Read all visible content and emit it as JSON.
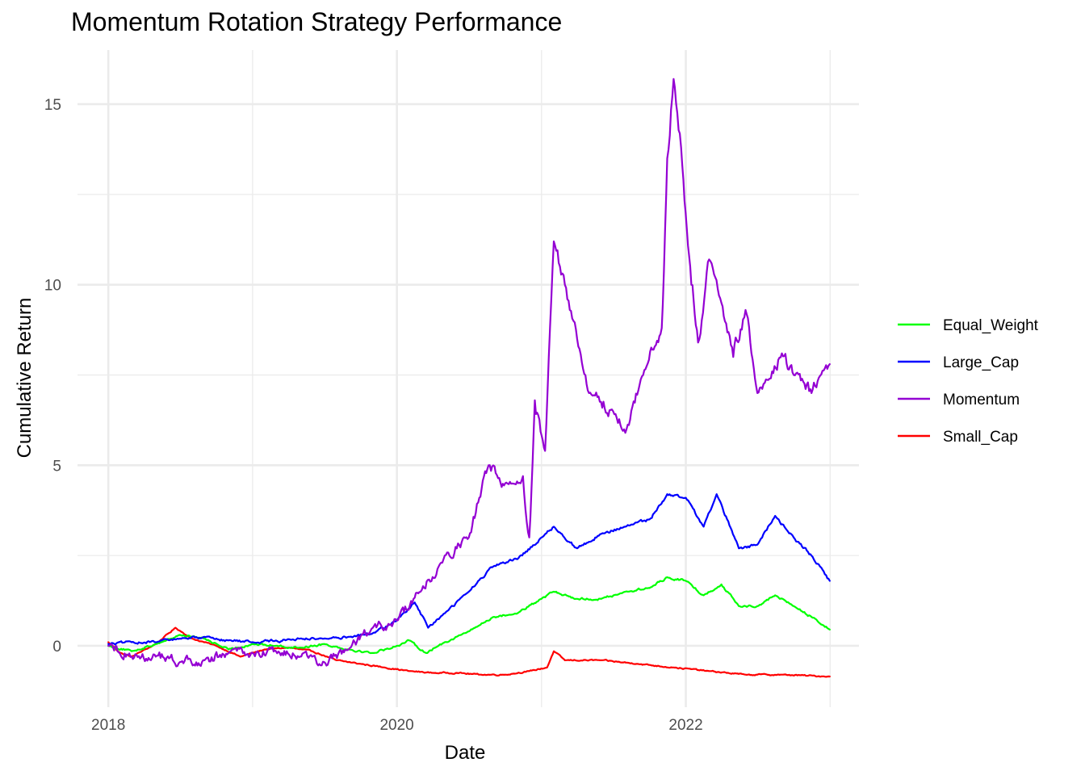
{
  "chart_data": {
    "type": "line",
    "title": "Momentum Rotation Strategy Performance",
    "xlabel": "Date",
    "ylabel": "Cumulative Return",
    "x_ticks": [
      "2018",
      "2020",
      "2022"
    ],
    "y_ticks": [
      "0",
      "5",
      "10",
      "15"
    ],
    "xlim": [
      "2017-10-15",
      "2023-03-15"
    ],
    "ylim": [
      -1.7,
      16.5
    ],
    "grid": true,
    "legend_position": "right",
    "series": [
      {
        "name": "Equal_Weight",
        "color": "#00ff00",
        "points": [
          [
            "2018-01-01",
            0.0
          ],
          [
            "2018-03-01",
            -0.15
          ],
          [
            "2018-05-01",
            0.05
          ],
          [
            "2018-07-01",
            0.3
          ],
          [
            "2018-09-01",
            0.2
          ],
          [
            "2018-11-01",
            -0.1
          ],
          [
            "2019-01-01",
            0.05
          ],
          [
            "2019-03-01",
            0.0
          ],
          [
            "2019-05-01",
            -0.05
          ],
          [
            "2019-07-01",
            0.05
          ],
          [
            "2019-09-01",
            -0.1
          ],
          [
            "2019-11-01",
            -0.2
          ],
          [
            "2020-01-01",
            0.0
          ],
          [
            "2020-02-01",
            0.15
          ],
          [
            "2020-03-15",
            -0.2
          ],
          [
            "2020-05-01",
            0.1
          ],
          [
            "2020-07-01",
            0.4
          ],
          [
            "2020-09-01",
            0.8
          ],
          [
            "2020-11-01",
            0.9
          ],
          [
            "2021-01-01",
            1.3
          ],
          [
            "2021-02-01",
            1.5
          ],
          [
            "2021-04-01",
            1.3
          ],
          [
            "2021-06-01",
            1.3
          ],
          [
            "2021-08-01",
            1.5
          ],
          [
            "2021-10-01",
            1.6
          ],
          [
            "2021-11-15",
            1.9
          ],
          [
            "2022-01-01",
            1.8
          ],
          [
            "2022-02-15",
            1.4
          ],
          [
            "2022-04-01",
            1.7
          ],
          [
            "2022-05-15",
            1.1
          ],
          [
            "2022-07-01",
            1.1
          ],
          [
            "2022-08-15",
            1.4
          ],
          [
            "2022-10-01",
            1.1
          ],
          [
            "2022-11-15",
            0.8
          ],
          [
            "2022-12-31",
            0.45
          ]
        ]
      },
      {
        "name": "Large_Cap",
        "color": "#0000ff",
        "points": [
          [
            "2018-01-01",
            0.05
          ],
          [
            "2018-03-01",
            0.1
          ],
          [
            "2018-05-01",
            0.1
          ],
          [
            "2018-07-01",
            0.2
          ],
          [
            "2018-09-01",
            0.25
          ],
          [
            "2018-11-01",
            0.15
          ],
          [
            "2019-01-01",
            0.1
          ],
          [
            "2019-03-01",
            0.15
          ],
          [
            "2019-05-01",
            0.2
          ],
          [
            "2019-07-01",
            0.2
          ],
          [
            "2019-09-01",
            0.25
          ],
          [
            "2019-11-01",
            0.35
          ],
          [
            "2020-01-01",
            0.7
          ],
          [
            "2020-02-15",
            1.2
          ],
          [
            "2020-03-20",
            0.5
          ],
          [
            "2020-05-01",
            0.9
          ],
          [
            "2020-07-01",
            1.5
          ],
          [
            "2020-09-01",
            2.2
          ],
          [
            "2020-11-01",
            2.4
          ],
          [
            "2021-01-01",
            3.0
          ],
          [
            "2021-02-01",
            3.3
          ],
          [
            "2021-04-01",
            2.7
          ],
          [
            "2021-06-01",
            3.1
          ],
          [
            "2021-08-01",
            3.3
          ],
          [
            "2021-10-01",
            3.5
          ],
          [
            "2021-11-15",
            4.2
          ],
          [
            "2022-01-01",
            4.1
          ],
          [
            "2022-02-15",
            3.3
          ],
          [
            "2022-03-20",
            4.2
          ],
          [
            "2022-05-15",
            2.7
          ],
          [
            "2022-07-01",
            2.8
          ],
          [
            "2022-08-15",
            3.6
          ],
          [
            "2022-10-01",
            3.0
          ],
          [
            "2022-11-15",
            2.5
          ],
          [
            "2022-12-31",
            1.8
          ]
        ]
      },
      {
        "name": "Momentum",
        "color": "#9400d3",
        "points": [
          [
            "2018-01-01",
            0.0
          ],
          [
            "2018-03-01",
            -0.3
          ],
          [
            "2018-05-01",
            -0.3
          ],
          [
            "2018-07-01",
            -0.45
          ],
          [
            "2018-09-01",
            -0.4
          ],
          [
            "2018-11-01",
            -0.2
          ],
          [
            "2019-01-01",
            -0.2
          ],
          [
            "2019-03-01",
            -0.15
          ],
          [
            "2019-05-01",
            -0.3
          ],
          [
            "2019-07-01",
            -0.45
          ],
          [
            "2019-09-01",
            -0.1
          ],
          [
            "2019-11-01",
            0.5
          ],
          [
            "2020-01-01",
            0.7
          ],
          [
            "2020-03-01",
            1.5
          ],
          [
            "2020-05-01",
            2.5
          ],
          [
            "2020-07-01",
            3.0
          ],
          [
            "2020-08-20",
            5.0
          ],
          [
            "2020-10-01",
            4.5
          ],
          [
            "2020-11-15",
            4.7
          ],
          [
            "2020-12-01",
            3.0
          ],
          [
            "2020-12-15",
            6.8
          ],
          [
            "2021-01-10",
            5.4
          ],
          [
            "2021-02-01",
            11.2
          ],
          [
            "2021-03-01",
            10.0
          ],
          [
            "2021-04-01",
            8.5
          ],
          [
            "2021-05-01",
            7.0
          ],
          [
            "2021-07-01",
            6.5
          ],
          [
            "2021-08-01",
            5.9
          ],
          [
            "2021-09-15",
            7.5
          ],
          [
            "2021-11-01",
            8.8
          ],
          [
            "2021-11-15",
            13.5
          ],
          [
            "2021-12-01",
            15.7
          ],
          [
            "2021-12-20",
            13.8
          ],
          [
            "2022-01-15",
            10.0
          ],
          [
            "2022-02-01",
            8.4
          ],
          [
            "2022-03-01",
            10.7
          ],
          [
            "2022-04-01",
            9.5
          ],
          [
            "2022-05-01",
            8.0
          ],
          [
            "2022-06-01",
            9.3
          ],
          [
            "2022-07-01",
            7.0
          ],
          [
            "2022-08-01",
            7.4
          ],
          [
            "2022-09-01",
            8.1
          ],
          [
            "2022-10-01",
            7.5
          ],
          [
            "2022-11-15",
            7.0
          ],
          [
            "2022-12-31",
            7.8
          ]
        ]
      },
      {
        "name": "Small_Cap",
        "color": "#ff0000",
        "points": [
          [
            "2018-01-01",
            0.1
          ],
          [
            "2018-02-01",
            -0.2
          ],
          [
            "2018-03-01",
            -0.3
          ],
          [
            "2018-05-01",
            0.05
          ],
          [
            "2018-06-20",
            0.5
          ],
          [
            "2018-08-01",
            0.2
          ],
          [
            "2018-10-01",
            0.0
          ],
          [
            "2018-12-01",
            -0.3
          ],
          [
            "2019-02-01",
            -0.1
          ],
          [
            "2019-04-01",
            -0.05
          ],
          [
            "2019-06-01",
            -0.15
          ],
          [
            "2019-08-01",
            -0.4
          ],
          [
            "2019-10-01",
            -0.5
          ],
          [
            "2019-12-01",
            -0.6
          ],
          [
            "2020-02-01",
            -0.7
          ],
          [
            "2020-04-01",
            -0.75
          ],
          [
            "2020-06-01",
            -0.75
          ],
          [
            "2020-08-01",
            -0.8
          ],
          [
            "2020-10-01",
            -0.8
          ],
          [
            "2020-12-01",
            -0.7
          ],
          [
            "2021-01-15",
            -0.6
          ],
          [
            "2021-02-01",
            -0.15
          ],
          [
            "2021-03-01",
            -0.4
          ],
          [
            "2021-06-01",
            -0.4
          ],
          [
            "2021-09-01",
            -0.5
          ],
          [
            "2021-12-01",
            -0.6
          ],
          [
            "2022-03-01",
            -0.7
          ],
          [
            "2022-06-01",
            -0.8
          ],
          [
            "2022-09-01",
            -0.8
          ],
          [
            "2022-12-31",
            -0.85
          ]
        ]
      }
    ]
  }
}
